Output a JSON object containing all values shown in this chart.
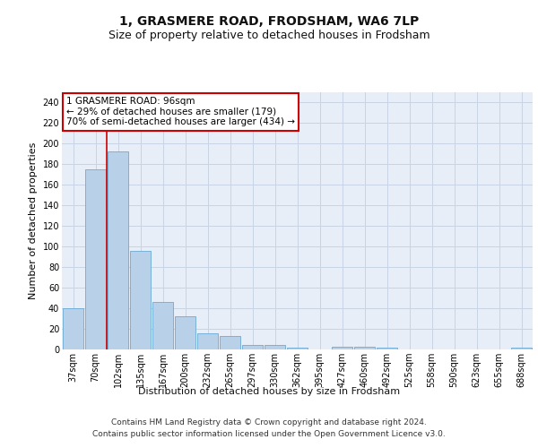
{
  "title": "1, GRASMERE ROAD, FRODSHAM, WA6 7LP",
  "subtitle": "Size of property relative to detached houses in Frodsham",
  "xlabel": "Distribution of detached houses by size in Frodsham",
  "ylabel": "Number of detached properties",
  "categories": [
    "37sqm",
    "70sqm",
    "102sqm",
    "135sqm",
    "167sqm",
    "200sqm",
    "232sqm",
    "265sqm",
    "297sqm",
    "330sqm",
    "362sqm",
    "395sqm",
    "427sqm",
    "460sqm",
    "492sqm",
    "525sqm",
    "558sqm",
    "590sqm",
    "623sqm",
    "655sqm",
    "688sqm"
  ],
  "values": [
    40,
    175,
    192,
    96,
    46,
    32,
    16,
    13,
    4,
    4,
    2,
    0,
    3,
    3,
    2,
    0,
    0,
    0,
    0,
    0,
    2
  ],
  "bar_color": "#b8d0e8",
  "bar_edge_color": "#6aaad4",
  "vline_x": 1.5,
  "vline_color": "#cc0000",
  "annotation_text": "1 GRASMERE ROAD: 96sqm\n← 29% of detached houses are smaller (179)\n70% of semi-detached houses are larger (434) →",
  "annotation_box_color": "#ffffff",
  "annotation_box_edge": "#cc0000",
  "ylim": [
    0,
    250
  ],
  "yticks": [
    0,
    20,
    40,
    60,
    80,
    100,
    120,
    140,
    160,
    180,
    200,
    220,
    240
  ],
  "bg_color": "#e8eef8",
  "grid_color": "#c8d4e4",
  "title_fontsize": 10,
  "subtitle_fontsize": 9,
  "tick_fontsize": 7,
  "ylabel_fontsize": 8,
  "xlabel_fontsize": 8,
  "footer_line1": "Contains HM Land Registry data © Crown copyright and database right 2024.",
  "footer_line2": "Contains public sector information licensed under the Open Government Licence v3.0."
}
